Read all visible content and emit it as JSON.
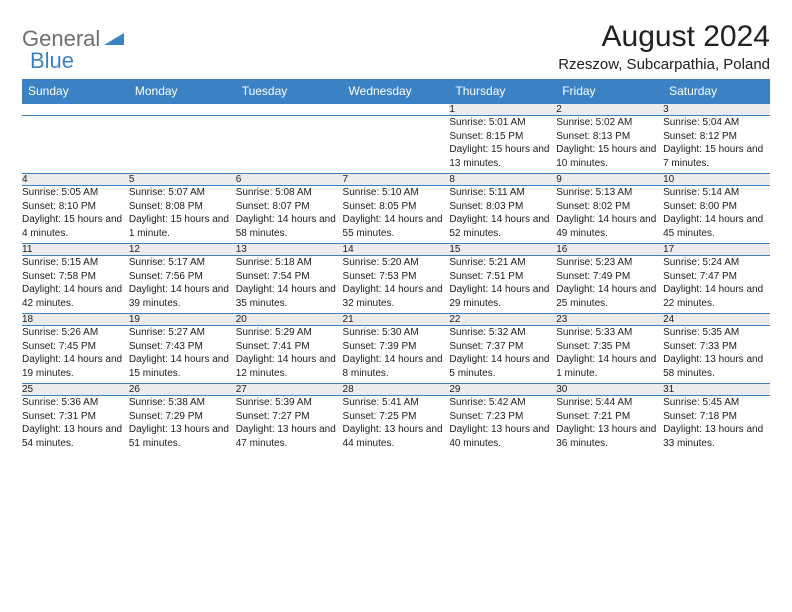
{
  "logo": {
    "part1": "General",
    "part2": "Blue"
  },
  "title": "August 2024",
  "location": "Rzeszow, Subcarpathia, Poland",
  "colors": {
    "header_bg": "#3b82c4",
    "header_text": "#ffffff",
    "daynum_bg": "#ececec",
    "text": "#202020",
    "logo_gray": "#6f6f6f",
    "logo_blue": "#3b82c4"
  },
  "weekdays": [
    "Sunday",
    "Monday",
    "Tuesday",
    "Wednesday",
    "Thursday",
    "Friday",
    "Saturday"
  ],
  "weeks": [
    [
      null,
      null,
      null,
      null,
      {
        "n": "1",
        "sr": "5:01 AM",
        "ss": "8:15 PM",
        "dl": "15 hours and 13 minutes."
      },
      {
        "n": "2",
        "sr": "5:02 AM",
        "ss": "8:13 PM",
        "dl": "15 hours and 10 minutes."
      },
      {
        "n": "3",
        "sr": "5:04 AM",
        "ss": "8:12 PM",
        "dl": "15 hours and 7 minutes."
      }
    ],
    [
      {
        "n": "4",
        "sr": "5:05 AM",
        "ss": "8:10 PM",
        "dl": "15 hours and 4 minutes."
      },
      {
        "n": "5",
        "sr": "5:07 AM",
        "ss": "8:08 PM",
        "dl": "15 hours and 1 minute."
      },
      {
        "n": "6",
        "sr": "5:08 AM",
        "ss": "8:07 PM",
        "dl": "14 hours and 58 minutes."
      },
      {
        "n": "7",
        "sr": "5:10 AM",
        "ss": "8:05 PM",
        "dl": "14 hours and 55 minutes."
      },
      {
        "n": "8",
        "sr": "5:11 AM",
        "ss": "8:03 PM",
        "dl": "14 hours and 52 minutes."
      },
      {
        "n": "9",
        "sr": "5:13 AM",
        "ss": "8:02 PM",
        "dl": "14 hours and 49 minutes."
      },
      {
        "n": "10",
        "sr": "5:14 AM",
        "ss": "8:00 PM",
        "dl": "14 hours and 45 minutes."
      }
    ],
    [
      {
        "n": "11",
        "sr": "5:15 AM",
        "ss": "7:58 PM",
        "dl": "14 hours and 42 minutes."
      },
      {
        "n": "12",
        "sr": "5:17 AM",
        "ss": "7:56 PM",
        "dl": "14 hours and 39 minutes."
      },
      {
        "n": "13",
        "sr": "5:18 AM",
        "ss": "7:54 PM",
        "dl": "14 hours and 35 minutes."
      },
      {
        "n": "14",
        "sr": "5:20 AM",
        "ss": "7:53 PM",
        "dl": "14 hours and 32 minutes."
      },
      {
        "n": "15",
        "sr": "5:21 AM",
        "ss": "7:51 PM",
        "dl": "14 hours and 29 minutes."
      },
      {
        "n": "16",
        "sr": "5:23 AM",
        "ss": "7:49 PM",
        "dl": "14 hours and 25 minutes."
      },
      {
        "n": "17",
        "sr": "5:24 AM",
        "ss": "7:47 PM",
        "dl": "14 hours and 22 minutes."
      }
    ],
    [
      {
        "n": "18",
        "sr": "5:26 AM",
        "ss": "7:45 PM",
        "dl": "14 hours and 19 minutes."
      },
      {
        "n": "19",
        "sr": "5:27 AM",
        "ss": "7:43 PM",
        "dl": "14 hours and 15 minutes."
      },
      {
        "n": "20",
        "sr": "5:29 AM",
        "ss": "7:41 PM",
        "dl": "14 hours and 12 minutes."
      },
      {
        "n": "21",
        "sr": "5:30 AM",
        "ss": "7:39 PM",
        "dl": "14 hours and 8 minutes."
      },
      {
        "n": "22",
        "sr": "5:32 AM",
        "ss": "7:37 PM",
        "dl": "14 hours and 5 minutes."
      },
      {
        "n": "23",
        "sr": "5:33 AM",
        "ss": "7:35 PM",
        "dl": "14 hours and 1 minute."
      },
      {
        "n": "24",
        "sr": "5:35 AM",
        "ss": "7:33 PM",
        "dl": "13 hours and 58 minutes."
      }
    ],
    [
      {
        "n": "25",
        "sr": "5:36 AM",
        "ss": "7:31 PM",
        "dl": "13 hours and 54 minutes."
      },
      {
        "n": "26",
        "sr": "5:38 AM",
        "ss": "7:29 PM",
        "dl": "13 hours and 51 minutes."
      },
      {
        "n": "27",
        "sr": "5:39 AM",
        "ss": "7:27 PM",
        "dl": "13 hours and 47 minutes."
      },
      {
        "n": "28",
        "sr": "5:41 AM",
        "ss": "7:25 PM",
        "dl": "13 hours and 44 minutes."
      },
      {
        "n": "29",
        "sr": "5:42 AM",
        "ss": "7:23 PM",
        "dl": "13 hours and 40 minutes."
      },
      {
        "n": "30",
        "sr": "5:44 AM",
        "ss": "7:21 PM",
        "dl": "13 hours and 36 minutes."
      },
      {
        "n": "31",
        "sr": "5:45 AM",
        "ss": "7:18 PM",
        "dl": "13 hours and 33 minutes."
      }
    ]
  ],
  "labels": {
    "sunrise": "Sunrise:",
    "sunset": "Sunset:",
    "daylight": "Daylight:"
  }
}
